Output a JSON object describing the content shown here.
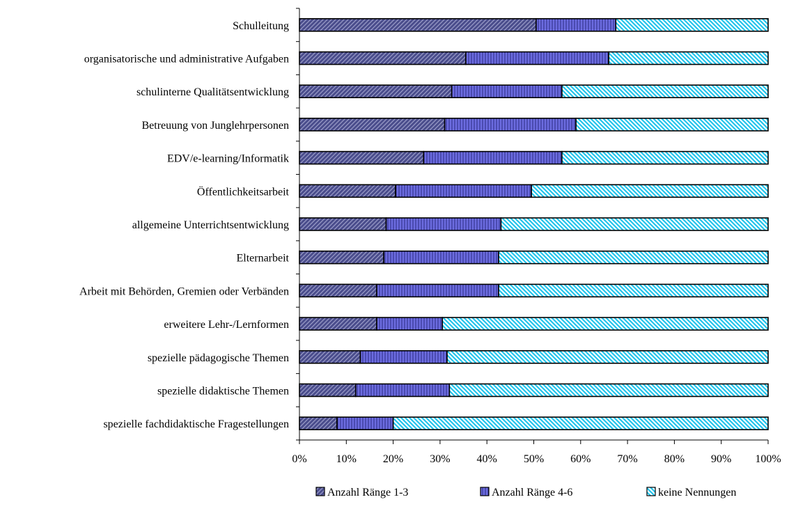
{
  "chart_data": {
    "type": "bar",
    "orientation": "horizontal",
    "stacked": "percent",
    "title": "",
    "xlabel": "",
    "ylabel": "",
    "xlim": [
      0,
      100
    ],
    "x_ticks": [
      "0%",
      "10%",
      "20%",
      "30%",
      "40%",
      "50%",
      "60%",
      "70%",
      "80%",
      "90%",
      "100%"
    ],
    "grid": false,
    "legend_position": "bottom",
    "categories": [
      "Schulleitung",
      "organisatorische und administrative Aufgaben",
      "schulinterne Qualitätsentwicklung",
      "Betreuung von Junglehrpersonen",
      "EDV/e-learning/Informatik",
      "Öffentlichkeitsarbeit",
      "allgemeine Unterrichtsentwicklung",
      "Elternarbeit",
      "Arbeit mit Behörden, Gremien oder Verbänden",
      "erweitere Lehr-/Lernformen",
      "spezielle  pädagogische Themen",
      "spezielle didaktische Themen",
      "spezielle fachdidaktische Fragestellungen"
    ],
    "series": [
      {
        "name": "Anzahl Ränge 1-3",
        "color": "#4a4d8c",
        "pattern": "diagonal-left",
        "values": [
          50.5,
          35.5,
          32.5,
          31.0,
          26.5,
          20.5,
          18.5,
          18.0,
          16.5,
          16.5,
          13.0,
          12.0,
          8.0
        ]
      },
      {
        "name": "Anzahl Ränge 4-6",
        "color": "#7373e6",
        "pattern": "vertical",
        "values": [
          17.0,
          30.5,
          23.5,
          28.0,
          29.5,
          29.0,
          24.5,
          24.5,
          26.0,
          14.0,
          18.5,
          20.0,
          12.0
        ]
      },
      {
        "name": "keine Nennungen",
        "color": "#33ccf0",
        "pattern": "diagonal-right",
        "values": [
          32.5,
          34.0,
          44.0,
          41.0,
          44.0,
          50.5,
          57.0,
          57.5,
          57.5,
          69.5,
          68.5,
          68.0,
          80.0
        ]
      }
    ]
  }
}
